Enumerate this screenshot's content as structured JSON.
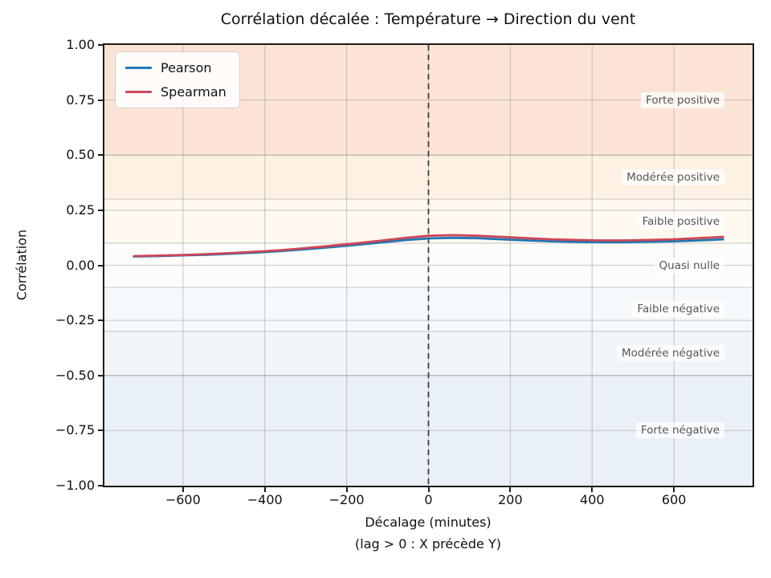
{
  "chart_data": {
    "type": "line",
    "title": "Corrélation décalée : Température → Direction du vent",
    "xlabel": "Décalage (minutes)",
    "xlabel_note": "(lag > 0 : X précède Y)",
    "ylabel": "Corrélation",
    "xlim": [
      -792,
      792
    ],
    "ylim": [
      -1.0,
      1.0
    ],
    "grid": true,
    "grid_color": "rgba(150,150,150,0.42)",
    "legend_position": "upper left",
    "xticks": [
      {
        "v": -600,
        "label": "−600"
      },
      {
        "v": -400,
        "label": "−400"
      },
      {
        "v": -200,
        "label": "−200"
      },
      {
        "v": 0,
        "label": "0"
      },
      {
        "v": 200,
        "label": "200"
      },
      {
        "v": 400,
        "label": "400"
      },
      {
        "v": 600,
        "label": "600"
      }
    ],
    "yticks": [
      {
        "v": 1.0,
        "label": "1.00"
      },
      {
        "v": 0.75,
        "label": "0.75"
      },
      {
        "v": 0.5,
        "label": "0.50"
      },
      {
        "v": 0.25,
        "label": "0.25"
      },
      {
        "v": 0.0,
        "label": "0.00"
      },
      {
        "v": -0.25,
        "label": "−0.25"
      },
      {
        "v": -0.5,
        "label": "−0.50"
      },
      {
        "v": -0.75,
        "label": "−0.75"
      },
      {
        "v": -1.0,
        "label": "−1.00"
      }
    ],
    "x": [
      -720,
      -660,
      -600,
      -540,
      -480,
      -420,
      -360,
      -300,
      -240,
      -180,
      -120,
      -60,
      0,
      60,
      120,
      180,
      240,
      300,
      360,
      420,
      480,
      540,
      600,
      660,
      720
    ],
    "series": [
      {
        "name": "Pearson",
        "color": "#1f77b4",
        "values": [
          0.04,
          0.042,
          0.045,
          0.048,
          0.053,
          0.058,
          0.065,
          0.073,
          0.082,
          0.092,
          0.103,
          0.114,
          0.122,
          0.125,
          0.123,
          0.118,
          0.113,
          0.109,
          0.106,
          0.105,
          0.105,
          0.107,
          0.109,
          0.113,
          0.118
        ]
      },
      {
        "name": "Spearman",
        "color": "#cd4657",
        "values": [
          0.042,
          0.044,
          0.047,
          0.051,
          0.056,
          0.062,
          0.069,
          0.078,
          0.088,
          0.099,
          0.111,
          0.124,
          0.134,
          0.137,
          0.134,
          0.129,
          0.123,
          0.118,
          0.115,
          0.113,
          0.113,
          0.115,
          0.118,
          0.123,
          0.129
        ]
      }
    ],
    "vline": {
      "x": 0,
      "color": "#3f3f3f",
      "style": "dashed"
    },
    "bands": [
      {
        "from": 0.5,
        "to": 1.0,
        "color": "#fbe4d6",
        "label": "Forte positive",
        "label_at": 0.75
      },
      {
        "from": 0.3,
        "to": 0.5,
        "color": "#fdf1e3",
        "label": "Modérée positive",
        "label_at": 0.4
      },
      {
        "from": 0.1,
        "to": 0.3,
        "color": "#fef8f0",
        "label": "Faible positive",
        "label_at": 0.2
      },
      {
        "from": -0.1,
        "to": 0.1,
        "color": "#fcfcfb",
        "label": "Quasi nulle",
        "label_at": 0.0
      },
      {
        "from": -0.3,
        "to": -0.1,
        "color": "#f6f9fc",
        "label": "Faible négative",
        "label_at": -0.2
      },
      {
        "from": -0.5,
        "to": -0.3,
        "color": "#f0f5fa",
        "label": "Modérée négative",
        "label_at": -0.4
      },
      {
        "from": -1.0,
        "to": -0.5,
        "color": "#e9f0f7",
        "label": "Forte négative",
        "label_at": -0.75
      }
    ]
  }
}
